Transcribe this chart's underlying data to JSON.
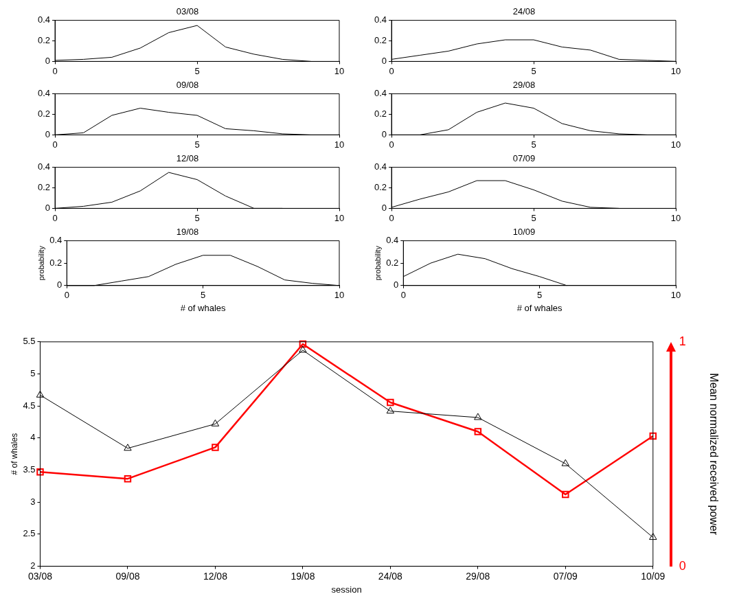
{
  "chart_data": [
    {
      "type": "line",
      "title": "03/08",
      "x": [
        0,
        1,
        2,
        3,
        4,
        5,
        6,
        7,
        8,
        9
      ],
      "values": [
        0.01,
        0.02,
        0.04,
        0.13,
        0.28,
        0.35,
        0.14,
        0.07,
        0.02,
        0
      ],
      "color": "#000000",
      "xlim": [
        0,
        10
      ],
      "xticks": [
        0,
        5,
        10
      ],
      "ylim": [
        0,
        0.4
      ],
      "yticks": [
        0,
        0.2,
        0.4
      ]
    },
    {
      "type": "line",
      "title": "24/08",
      "x": [
        0,
        1,
        2,
        3,
        4,
        5,
        6,
        7,
        8,
        9,
        10
      ],
      "values": [
        0.02,
        0.06,
        0.1,
        0.17,
        0.21,
        0.21,
        0.14,
        0.11,
        0.02,
        0.01,
        0
      ],
      "color": "#000000",
      "xlim": [
        0,
        10
      ],
      "xticks": [
        0,
        5,
        10
      ],
      "ylim": [
        0,
        0.4
      ],
      "yticks": [
        0,
        0.2,
        0.4
      ]
    },
    {
      "type": "line",
      "title": "09/08",
      "x": [
        0,
        1,
        2,
        3,
        4,
        5,
        6,
        7,
        8,
        9,
        10
      ],
      "values": [
        0,
        0.02,
        0.19,
        0.26,
        0.22,
        0.19,
        0.06,
        0.04,
        0.01,
        0,
        0
      ],
      "color": "#000000",
      "xlim": [
        0,
        10
      ],
      "xticks": [
        0,
        5,
        10
      ],
      "ylim": [
        0,
        0.4
      ],
      "yticks": [
        0,
        0.2,
        0.4
      ]
    },
    {
      "type": "line",
      "title": "29/08",
      "x": [
        0,
        1,
        2,
        3,
        4,
        5,
        6,
        7,
        8,
        9,
        10
      ],
      "values": [
        0,
        0,
        0.05,
        0.22,
        0.31,
        0.26,
        0.11,
        0.04,
        0.01,
        0,
        0
      ],
      "color": "#000000",
      "xlim": [
        0,
        10
      ],
      "xticks": [
        0,
        5,
        10
      ],
      "ylim": [
        0,
        0.4
      ],
      "yticks": [
        0,
        0.2,
        0.4
      ]
    },
    {
      "type": "line",
      "title": "12/08",
      "x": [
        0,
        1,
        2,
        3,
        4,
        5,
        6,
        7,
        8
      ],
      "values": [
        0,
        0.02,
        0.06,
        0.17,
        0.35,
        0.28,
        0.12,
        0,
        0
      ],
      "color": "#000000",
      "xlim": [
        0,
        10
      ],
      "xticks": [
        0,
        5,
        10
      ],
      "ylim": [
        0,
        0.4
      ],
      "yticks": [
        0,
        0.2,
        0.4
      ]
    },
    {
      "type": "line",
      "title": "07/09",
      "x": [
        0,
        1,
        2,
        3,
        4,
        5,
        6,
        7,
        8
      ],
      "values": [
        0.01,
        0.09,
        0.16,
        0.27,
        0.27,
        0.18,
        0.07,
        0.01,
        0
      ],
      "color": "#000000",
      "xlim": [
        0,
        10
      ],
      "xticks": [
        0,
        5,
        10
      ],
      "ylim": [
        0,
        0.4
      ],
      "yticks": [
        0,
        0.2,
        0.4
      ]
    },
    {
      "type": "line",
      "title": "19/08",
      "xlabel": "# of whales",
      "ylabel": "probability",
      "x": [
        0,
        1,
        2,
        3,
        4,
        5,
        6,
        7,
        8,
        9,
        10
      ],
      "values": [
        0,
        0,
        0.04,
        0.08,
        0.19,
        0.27,
        0.27,
        0.17,
        0.05,
        0.02,
        0
      ],
      "color": "#000000",
      "xlim": [
        0,
        10
      ],
      "xticks": [
        0,
        5,
        10
      ],
      "ylim": [
        0,
        0.4
      ],
      "yticks": [
        0,
        0.2,
        0.4
      ]
    },
    {
      "type": "line",
      "title": "10/09",
      "xlabel": "# of whales",
      "ylabel": "probability",
      "x": [
        0,
        1,
        2,
        3,
        4,
        5,
        6
      ],
      "values": [
        0.08,
        0.2,
        0.28,
        0.24,
        0.15,
        0.08,
        0
      ],
      "color": "#000000",
      "xlim": [
        0,
        10
      ],
      "xticks": [
        0,
        5,
        10
      ],
      "ylim": [
        0,
        0.4
      ],
      "yticks": [
        0,
        0.2,
        0.4
      ]
    },
    {
      "type": "line",
      "xlabel": "session",
      "ylabel": "# of whales",
      "y2label": "Mean normalized received power",
      "categories": [
        "03/08",
        "09/08",
        "12/08",
        "19/08",
        "24/08",
        "29/08",
        "07/09",
        "10/09"
      ],
      "series": [
        {
          "color": "#000000",
          "marker": "triangle",
          "values": [
            4.67,
            3.84,
            4.22,
            5.37,
            4.42,
            4.32,
            3.6,
            2.45
          ]
        },
        {
          "color": "#ff0000",
          "marker": "square",
          "axis": "y2",
          "values": [
            0.42,
            0.39,
            0.53,
            0.99,
            0.73,
            0.6,
            0.32,
            0.58
          ]
        }
      ],
      "ylim": [
        2,
        5.5
      ],
      "yticks": [
        2,
        2.5,
        3,
        3.5,
        4,
        4.5,
        5,
        5.5
      ],
      "y2lim": [
        0,
        1
      ],
      "y2ticks": [
        0,
        1
      ]
    }
  ]
}
